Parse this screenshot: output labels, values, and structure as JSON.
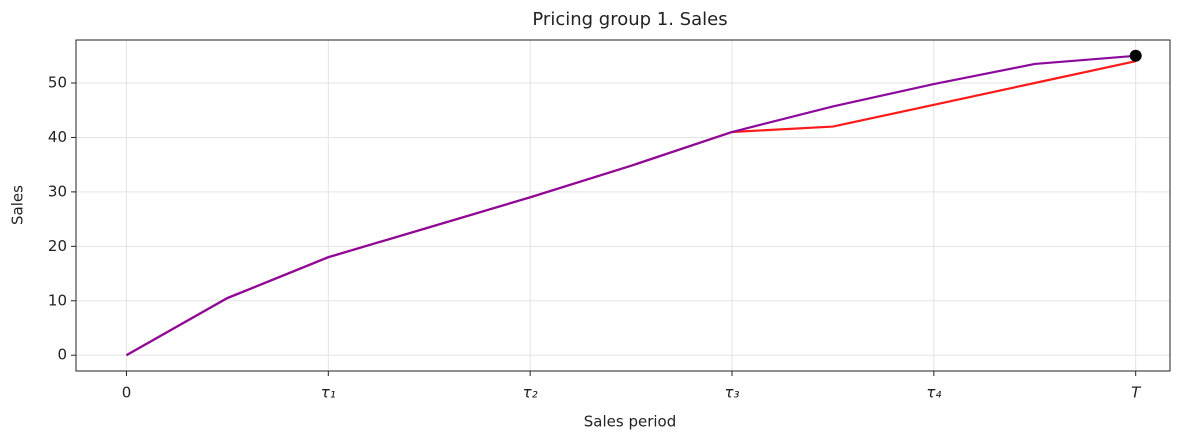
{
  "chart_data": {
    "type": "line",
    "title": "Pricing group 1. Sales",
    "xlabel": "Sales period",
    "ylabel": "Sales",
    "x": [
      0,
      0.5,
      1,
      1.5,
      2,
      2.5,
      3,
      3.5,
      4,
      4.5,
      5
    ],
    "series": [
      {
        "color": "#ff1a1a",
        "values": [
          0,
          10.5,
          18,
          23.5,
          29,
          34.8,
          41,
          42,
          46,
          50,
          54
        ]
      },
      {
        "color": "#8b0a9c",
        "values": [
          0,
          10.5,
          18,
          23.5,
          29,
          34.8,
          41,
          45.7,
          49.8,
          53.5,
          55
        ]
      }
    ],
    "highlight": {
      "x": 5,
      "y": 55,
      "color": "#000000"
    },
    "xlim": [
      -0.25,
      5.17
    ],
    "ylim": [
      -2.9,
      57.9
    ],
    "xticks": [
      0,
      {
        "value": 1,
        "label": "τ₁"
      },
      {
        "value": 2,
        "label": "τ₂"
      },
      {
        "value": 3,
        "label": "τ₃"
      },
      {
        "value": 4,
        "label": "τ₄"
      },
      {
        "value": 5,
        "label": "T"
      }
    ],
    "yticks": [
      0,
      10,
      20,
      30,
      40,
      50
    ],
    "grid": true
  }
}
